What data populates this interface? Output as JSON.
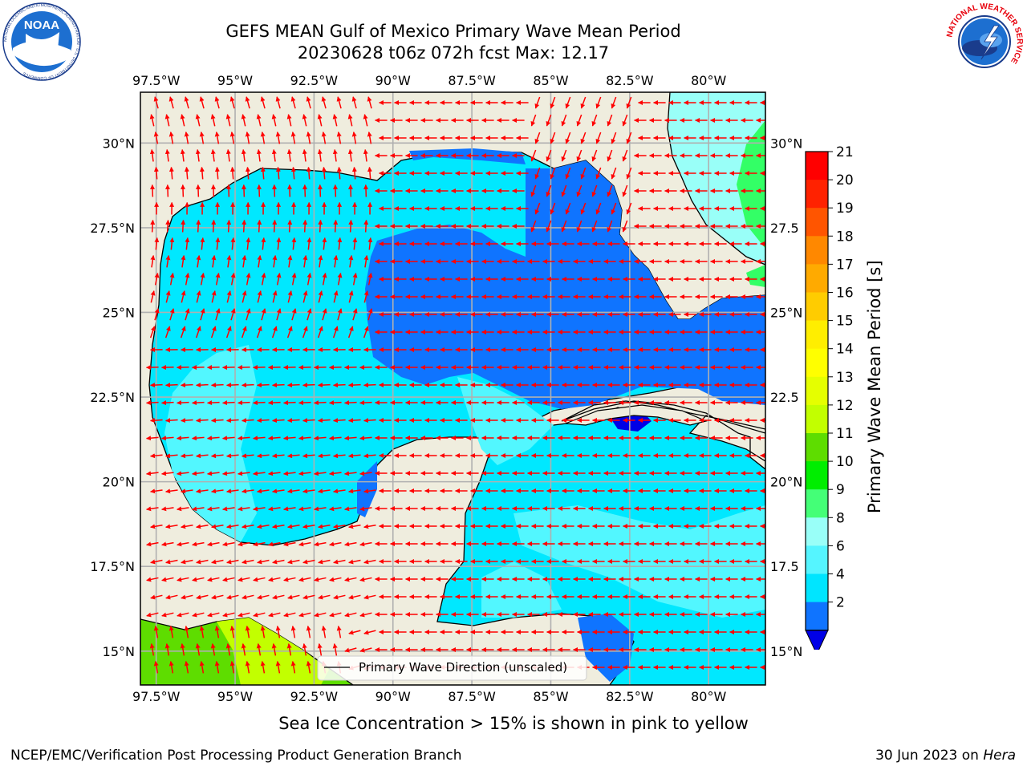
{
  "header": {
    "title_line1": "GEFS MEAN Gulf of Mexico Primary Wave Mean Period",
    "title_line2": "20230628 t06z 072h fcst   Max: 12.17"
  },
  "logos": {
    "left": "noaa-logo",
    "left_text": "NOAA",
    "left_ring_text": "NATIONAL OCEANIC AND ATMOSPHERIC ADMINISTRATION · U.S. DEPARTMENT OF COMMERCE",
    "right": "nws-logo",
    "right_ring_text": "NATIONAL WEATHER SERVICE"
  },
  "map": {
    "lon_labels": [
      "97.5°W",
      "95°W",
      "92.5°W",
      "90°W",
      "87.5°W",
      "85°W",
      "82.5°W",
      "80°W"
    ],
    "lat_labels_left": [
      "30°N",
      "27.5°N",
      "25°N",
      "22.5°N",
      "20°N",
      "17.5°N",
      "15°N"
    ],
    "lat_labels_right": [
      "30°N",
      "27.5",
      "25°N",
      "22.5",
      "20°N",
      "17.5",
      "15°N"
    ],
    "lon_range": [
      -98,
      -78.2
    ],
    "lat_range": [
      14,
      31.5
    ],
    "legend_label": "Primary Wave Direction (unscaled)",
    "colors": {
      "land": "#efedde",
      "ocean_low": "#0f74ff",
      "ocean_mid": "#00e8ff",
      "ocean_high": "#52f7ff",
      "arrow": "#ff0000",
      "green": "#33ff66",
      "lime": "#b8ff00"
    }
  },
  "colorbar": {
    "label": "Primary Wave Mean Period [s]",
    "ticks": [
      "21",
      "20",
      "19",
      "18",
      "17",
      "16",
      "15",
      "14",
      "13",
      "12",
      "11",
      "10",
      "9",
      "8",
      "6",
      "4",
      "2"
    ],
    "bands": [
      "#ff0000",
      "#ff2200",
      "#ff5500",
      "#ff8800",
      "#ffaa00",
      "#ffcc00",
      "#ffee00",
      "#ffff00",
      "#e5ff00",
      "#c2ff00",
      "#5edd00",
      "#00ee00",
      "#44ff77",
      "#99fff8",
      "#55f5ff",
      "#00e5ff",
      "#0f74ff"
    ],
    "extend_color": "#0000e6"
  },
  "footer": {
    "note": "Sea Ice Concentration > 15% is shown in pink to yellow",
    "credit_left": "NCEP/EMC/Verification Post Processing Product Generation Branch",
    "credit_right_date": "30 Jun 2023 on",
    "credit_right_host": "Hera"
  }
}
